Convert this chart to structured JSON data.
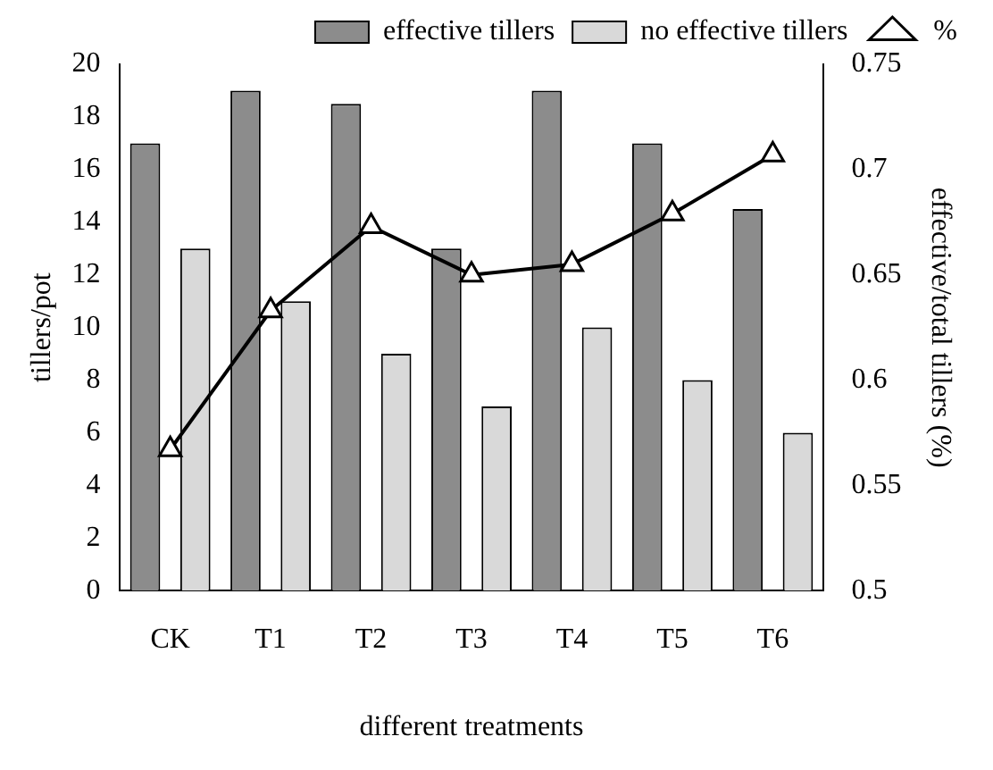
{
  "chart_data": {
    "type": "bar",
    "xlabel": "different treatments",
    "ylabel": "tillers/pot",
    "y2label": "effective/total tillers (%)",
    "categories": [
      "CK",
      "T1",
      "T2",
      "T3",
      "T4",
      "T5",
      "T6"
    ],
    "series": [
      {
        "name": "effective tillers",
        "color": "#8c8c8c",
        "values": [
          17,
          19,
          18.5,
          13,
          19,
          17,
          14.5
        ]
      },
      {
        "name": "no effective tillers",
        "color": "#d9d9d9",
        "values": [
          13,
          11,
          9,
          7,
          10,
          8,
          6
        ]
      },
      {
        "name": "%",
        "type": "line",
        "axis": "y2",
        "color": "#000000",
        "marker": "triangle",
        "values": [
          0.567,
          0.633,
          0.673,
          0.65,
          0.655,
          0.679,
          0.707
        ]
      }
    ],
    "ylim": [
      0,
      20
    ],
    "yticks": [
      0,
      2,
      4,
      6,
      8,
      10,
      12,
      14,
      16,
      18,
      20
    ],
    "y2lim": [
      0.5,
      0.75
    ],
    "y2ticks": [
      0.5,
      0.55,
      0.6,
      0.65,
      0.7,
      0.75
    ],
    "grid": false,
    "legend": "top"
  }
}
